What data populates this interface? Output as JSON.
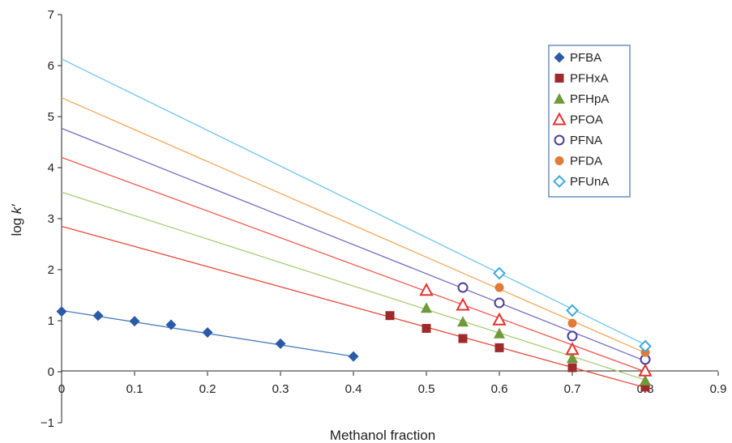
{
  "chart_data": {
    "type": "scatter",
    "xlabel": "Methanol fraction",
    "ylabel": {
      "prefix": "log ",
      "italic": "k′"
    },
    "xlim": [
      0,
      0.9
    ],
    "ylim": [
      -1,
      7
    ],
    "xticks": [
      "0",
      "0.1",
      "0.2",
      "0.3",
      "0.4",
      "0.5",
      "0.6",
      "0.7",
      "0.8",
      "0.9"
    ],
    "yticks": [
      "−1",
      "0",
      "1",
      "2",
      "3",
      "4",
      "5",
      "6",
      "7"
    ],
    "grid": false,
    "legend_position": "top-right",
    "series": [
      {
        "name": "PFBA",
        "marker": "diamond-filled",
        "color": "#2b5aa6",
        "line_color": "#4a7ec0",
        "x": [
          0,
          0.05,
          0.1,
          0.15,
          0.2,
          0.3,
          0.4
        ],
        "y": [
          1.18,
          1.1,
          0.99,
          0.92,
          0.77,
          0.55,
          0.3
        ],
        "fit": {
          "intercept": 1.2,
          "slope": -2.25,
          "x_range": [
            0,
            0.4
          ]
        }
      },
      {
        "name": "PFHxA",
        "marker": "square-filled",
        "color": "#9e2a2b",
        "line_color": "#e64b3c",
        "x": [
          0.45,
          0.5,
          0.55,
          0.6,
          0.7,
          0.8
        ],
        "y": [
          1.1,
          0.85,
          0.65,
          0.47,
          0.08,
          -0.3
        ],
        "fit": {
          "intercept": 2.85,
          "slope": -3.95,
          "x_range": [
            0,
            0.8
          ]
        }
      },
      {
        "name": "PFHpA",
        "marker": "triangle-filled",
        "color": "#6f9a3a",
        "line_color": "#a8cc78",
        "x": [
          0.5,
          0.55,
          0.6,
          0.7,
          0.8
        ],
        "y": [
          1.25,
          0.98,
          0.75,
          0.27,
          -0.17
        ],
        "fit": {
          "intercept": 3.52,
          "slope": -4.6,
          "x_range": [
            0,
            0.8
          ]
        }
      },
      {
        "name": "PFOA",
        "marker": "triangle-open",
        "color": "#e8312f",
        "line_color": "#f05a4e",
        "x": [
          0.5,
          0.55,
          0.6,
          0.7,
          0.8
        ],
        "y": [
          1.6,
          1.31,
          1.02,
          0.44,
          0.02
        ],
        "fit": {
          "intercept": 4.2,
          "slope": -5.25,
          "x_range": [
            0,
            0.8
          ]
        }
      },
      {
        "name": "PFNA",
        "marker": "circle-open",
        "color": "#4b3e9a",
        "line_color": "#7a6cc2",
        "x": [
          0.55,
          0.6,
          0.7,
          0.8
        ],
        "y": [
          1.65,
          1.35,
          0.7,
          0.24
        ],
        "fit": {
          "intercept": 4.77,
          "slope": -5.7,
          "x_range": [
            0,
            0.8
          ]
        }
      },
      {
        "name": "PFDA",
        "marker": "circle-filled",
        "color": "#e07b39",
        "line_color": "#f3a85e",
        "x": [
          0.6,
          0.7,
          0.8
        ],
        "y": [
          1.65,
          0.95,
          0.38
        ],
        "fit": {
          "intercept": 5.37,
          "slope": -6.25,
          "x_range": [
            0,
            0.8
          ]
        }
      },
      {
        "name": "PFUnA",
        "marker": "diamond-open",
        "color": "#3fa9e0",
        "line_color": "#6fc4ef",
        "x": [
          0.6,
          0.7,
          0.8
        ],
        "y": [
          1.93,
          1.2,
          0.5
        ],
        "fit": {
          "intercept": 6.13,
          "slope": -7.0,
          "x_range": [
            0,
            0.8
          ]
        }
      }
    ]
  }
}
